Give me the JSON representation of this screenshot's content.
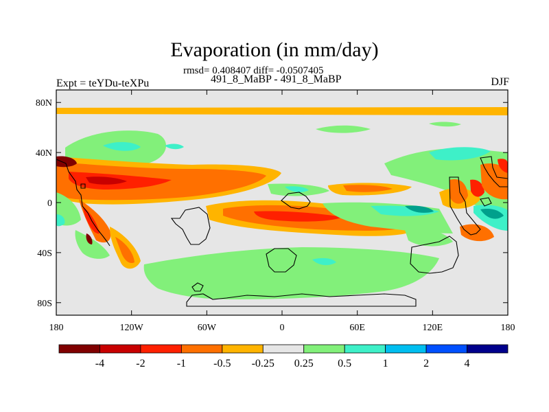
{
  "title": "Evaporation (in mm/day)",
  "stats": "rmsd= 0.408407 diff= -0.0507405",
  "runs": "491_8_MaBP - 491_8_MaBP",
  "experiment": "Expt = teYDu-teXPu",
  "season": "DJF",
  "chart_data": {
    "type": "heatmap",
    "variable": "Evaporation difference (mm/day)",
    "x_ticks": [
      {
        "lon": -180,
        "label": "180"
      },
      {
        "lon": -120,
        "label": "120W"
      },
      {
        "lon": -60,
        "label": "60W"
      },
      {
        "lon": 0,
        "label": "0"
      },
      {
        "lon": 60,
        "label": "60E"
      },
      {
        "lon": 120,
        "label": "120E"
      },
      {
        "lon": 180,
        "label": "180"
      }
    ],
    "y_ticks": [
      {
        "lat": 80,
        "label": "80N"
      },
      {
        "lat": 40,
        "label": "40N"
      },
      {
        "lat": 0,
        "label": "0"
      },
      {
        "lat": -40,
        "label": "40S"
      },
      {
        "lat": -80,
        "label": "80S"
      }
    ],
    "xlim": [
      -180,
      180
    ],
    "ylim": [
      -90,
      90
    ],
    "colorbar": {
      "levels": [
        "-4",
        "-2",
        "-1",
        "-0.5",
        "-0.25",
        "0.25",
        "0.5",
        "1",
        "2",
        "4"
      ],
      "colors": [
        "#800000",
        "#c80000",
        "#ff2000",
        "#ff7000",
        "#ffb400",
        "#e6e6e6",
        "#82f07a",
        "#3ef0c8",
        "#00bef0",
        "#0050ff",
        "#00008c"
      ]
    }
  }
}
